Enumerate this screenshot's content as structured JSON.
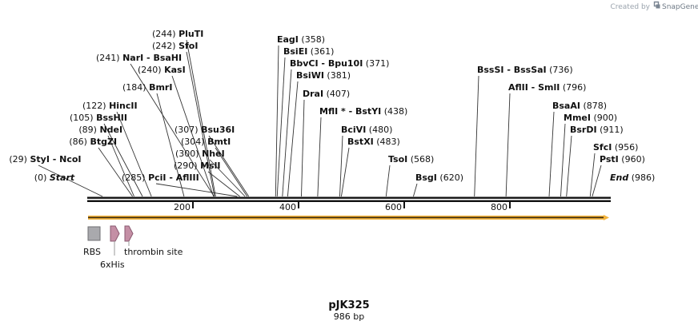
{
  "plasmid": {
    "name": "pJK325",
    "length_label": "986 bp"
  },
  "credit": {
    "text": "Created by",
    "brand": "SnapGene"
  },
  "ruler_ticks": [
    "200",
    "400",
    "600",
    "800"
  ],
  "features": [
    {
      "label": "RBS",
      "color": "#a9a9ad"
    },
    {
      "label": "6xHis",
      "color": "#c48fa5"
    },
    {
      "label": "thrombin site",
      "color": "#c48fa5"
    }
  ],
  "sites": [
    {
      "name": "PluTI",
      "pos": "(244)",
      "bp": 244
    },
    {
      "name": "SfoI",
      "pos": "(242)",
      "bp": 242
    },
    {
      "name": "NarI - BsaHI",
      "pos": "(241)",
      "bp": 241
    },
    {
      "name": "KasI",
      "pos": "(240)",
      "bp": 240
    },
    {
      "name": "BmrI",
      "pos": "(184)",
      "bp": 184
    },
    {
      "name": "HincII",
      "pos": "(122)",
      "bp": 122
    },
    {
      "name": "BssHII",
      "pos": "(105)",
      "bp": 105
    },
    {
      "name": "NdeI",
      "pos": "(89)",
      "bp": 89
    },
    {
      "name": "BtgZI",
      "pos": "(86)",
      "bp": 86
    },
    {
      "name": "StyI - NcoI",
      "pos": "(29)",
      "bp": 29
    },
    {
      "name": "Start",
      "pos": "(0)",
      "bp": 0,
      "terminal": true
    },
    {
      "name": "Bsu36I",
      "pos": "(307)",
      "bp": 307
    },
    {
      "name": "BmtI",
      "pos": "(304)",
      "bp": 304
    },
    {
      "name": "NheI",
      "pos": "(300)",
      "bp": 300
    },
    {
      "name": "MslI",
      "pos": "(290)",
      "bp": 290
    },
    {
      "name": "PciI - AflIII",
      "pos": "(285)",
      "bp": 285
    },
    {
      "name": "EagI",
      "pos": "(358)",
      "bp": 358
    },
    {
      "name": "BsiEI",
      "pos": "(361)",
      "bp": 361
    },
    {
      "name": "BbvCI - Bpu10I",
      "pos": "(371)",
      "bp": 371
    },
    {
      "name": "BsiWI",
      "pos": "(381)",
      "bp": 381
    },
    {
      "name": "DraI",
      "pos": "(407)",
      "bp": 407
    },
    {
      "name": "MflI * - BstYI",
      "pos": "(438)",
      "bp": 438
    },
    {
      "name": "BciVI",
      "pos": "(480)",
      "bp": 480
    },
    {
      "name": "BstXI",
      "pos": "(483)",
      "bp": 483
    },
    {
      "name": "TsoI",
      "pos": "(568)",
      "bp": 568
    },
    {
      "name": "BsgI",
      "pos": "(620)",
      "bp": 620
    },
    {
      "name": "BssSI - BssSaI",
      "pos": "(736)",
      "bp": 736
    },
    {
      "name": "AflII - SmlI",
      "pos": "(796)",
      "bp": 796
    },
    {
      "name": "BsaAI",
      "pos": "(878)",
      "bp": 878
    },
    {
      "name": "MmeI",
      "pos": "(900)",
      "bp": 900
    },
    {
      "name": "BsrDI",
      "pos": "(911)",
      "bp": 911
    },
    {
      "name": "SfcI",
      "pos": "(956)",
      "bp": 956
    },
    {
      "name": "PstI",
      "pos": "(960)",
      "bp": 960
    },
    {
      "name": "End",
      "pos": "(986)",
      "bp": 986,
      "terminal": true
    }
  ]
}
